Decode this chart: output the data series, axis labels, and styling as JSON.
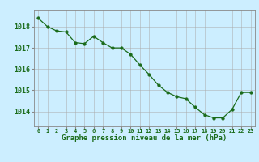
{
  "x": [
    0,
    1,
    2,
    3,
    4,
    5,
    6,
    7,
    8,
    9,
    10,
    11,
    12,
    13,
    14,
    15,
    16,
    17,
    18,
    19,
    20,
    21,
    22,
    23
  ],
  "y": [
    1018.4,
    1018.0,
    1017.8,
    1017.75,
    1017.25,
    1017.2,
    1017.55,
    1017.25,
    1017.0,
    1017.0,
    1016.7,
    1016.2,
    1015.75,
    1015.25,
    1014.9,
    1014.7,
    1014.6,
    1014.2,
    1013.85,
    1013.7,
    1013.7,
    1014.1,
    1014.9,
    1014.9
  ],
  "ylim": [
    1013.3,
    1018.8
  ],
  "yticks": [
    1014,
    1015,
    1016,
    1017,
    1018
  ],
  "xticks": [
    0,
    1,
    2,
    3,
    4,
    5,
    6,
    7,
    8,
    9,
    10,
    11,
    12,
    13,
    14,
    15,
    16,
    17,
    18,
    19,
    20,
    21,
    22,
    23
  ],
  "line_color": "#1a6b1a",
  "marker_color": "#1a6b1a",
  "bg_color": "#cceeff",
  "grid_color": "#aaaaaa",
  "xlabel": "Graphe pression niveau de la mer (hPa)",
  "xlabel_color": "#1a6b1a",
  "tick_color": "#1a6b1a",
  "spine_color": "#888888"
}
